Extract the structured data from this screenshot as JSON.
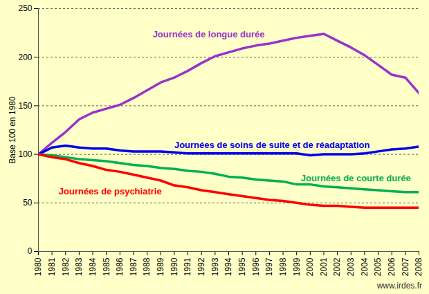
{
  "chart_data": {
    "type": "line",
    "y_label": "Base 100 en 1980",
    "caption": "www.irdes.fr",
    "x": [
      1980,
      1981,
      1982,
      1983,
      1984,
      1985,
      1986,
      1987,
      1988,
      1989,
      1990,
      1991,
      1992,
      1993,
      1994,
      1995,
      1996,
      1997,
      1998,
      1999,
      2000,
      2001,
      2002,
      2003,
      2004,
      2005,
      2006,
      2007,
      2008
    ],
    "xlim": [
      1980,
      2008
    ],
    "xticks": [
      1980,
      1981,
      1982,
      1983,
      1984,
      1985,
      1986,
      1987,
      1988,
      1989,
      1990,
      1991,
      1992,
      1993,
      1994,
      1995,
      1996,
      1997,
      1998,
      1999,
      2000,
      2001,
      2002,
      2003,
      2004,
      2005,
      2006,
      2007,
      2008
    ],
    "ylim": [
      0,
      250
    ],
    "yticks": [
      0,
      50,
      100,
      150,
      200,
      250
    ],
    "grid": true,
    "series": [
      {
        "name": "Journées de longue durée",
        "color": "#9933CC",
        "values": [
          100,
          112,
          123,
          136,
          143,
          147,
          151,
          158,
          166,
          174,
          179,
          186,
          194,
          201,
          205,
          209,
          212,
          214,
          217,
          220,
          222,
          224,
          217,
          210,
          202,
          192,
          182,
          179,
          163
        ]
      },
      {
        "name": "Journées de soins de suite et de réadaptation",
        "color": "#0000EE",
        "values": [
          100,
          107,
          109,
          107,
          106,
          106,
          104,
          103,
          103,
          103,
          102,
          101,
          101,
          101,
          101,
          101,
          101,
          101,
          101,
          101,
          99,
          100,
          100,
          100,
          101,
          103,
          105,
          106,
          108
        ]
      },
      {
        "name": "Journées de courte durée",
        "color": "#00B050",
        "values": [
          100,
          99,
          97,
          95,
          94,
          93,
          91,
          89,
          88,
          86,
          85,
          83,
          82,
          80,
          77,
          76,
          74,
          73,
          72,
          69,
          69,
          67,
          66,
          65,
          64,
          63,
          62,
          61,
          61
        ]
      },
      {
        "name": "Journées de psychiatrie",
        "color": "#FF0000",
        "values": [
          100,
          97,
          95,
          91,
          88,
          84,
          82,
          79,
          76,
          73,
          68,
          66,
          63,
          61,
          59,
          57,
          55,
          53,
          52,
          50,
          48,
          47,
          47,
          46,
          45,
          45,
          45,
          45,
          45
        ]
      }
    ]
  }
}
